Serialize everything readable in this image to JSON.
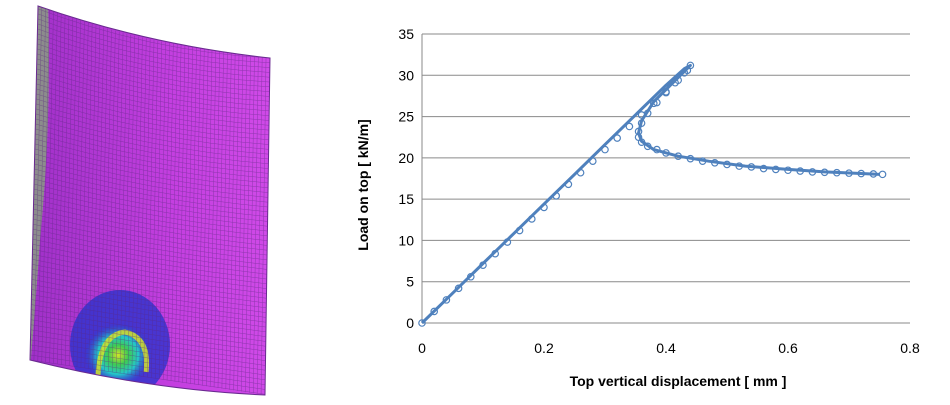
{
  "left_figure": {
    "mesh_colors": {
      "base": "#c43fe0",
      "grey_band": "#8c8c8c",
      "grid_line": "#5a2a80",
      "blue": "#2233cc",
      "cyan": "#24c8c8",
      "green": "#3ecc52",
      "yellow": "#d2e428"
    }
  },
  "chart_data": {
    "type": "scatter",
    "title": "",
    "xlabel": "Top vertical displacement [ mm ]",
    "ylabel": "Load on top [ kN/m]",
    "xlim": [
      0,
      0.8
    ],
    "ylim": [
      0,
      35
    ],
    "xticks": [
      "0",
      "0.2",
      "0.4",
      "0.6",
      "0.8"
    ],
    "yticks": [
      "0",
      "5",
      "10",
      "15",
      "20",
      "25",
      "30",
      "35"
    ],
    "grid": "horizontal",
    "legend": "none",
    "line_color": "#4f81bd",
    "marker_color": "#4f81bd",
    "series": [
      {
        "style": "line",
        "x": [
          0,
          0.05,
          0.1,
          0.15,
          0.2,
          0.25,
          0.3,
          0.35,
          0.4,
          0.43,
          0.44,
          0.41,
          0.38,
          0.36,
          0.355,
          0.36,
          0.38,
          0.42,
          0.47,
          0.53,
          0.6,
          0.66,
          0.72,
          0.75
        ],
        "y": [
          0,
          3.6,
          7.2,
          10.8,
          14.4,
          18.0,
          21.6,
          25.2,
          28.8,
          30.8,
          31.2,
          29.0,
          26.8,
          24.5,
          23.0,
          22.0,
          21.0,
          20.2,
          19.6,
          19.0,
          18.6,
          18.3,
          18.1,
          18.0
        ]
      },
      {
        "style": "markers",
        "x": [
          0,
          0.02,
          0.04,
          0.06,
          0.08,
          0.1,
          0.12,
          0.14,
          0.16,
          0.18,
          0.2,
          0.22,
          0.24,
          0.26,
          0.28,
          0.3,
          0.32,
          0.34,
          0.36,
          0.38,
          0.4,
          0.42,
          0.435,
          0.44,
          0.43,
          0.415,
          0.4,
          0.385,
          0.37,
          0.36,
          0.355,
          0.355,
          0.36,
          0.37,
          0.385,
          0.4,
          0.42,
          0.44,
          0.46,
          0.48,
          0.5,
          0.52,
          0.54,
          0.56,
          0.58,
          0.6,
          0.62,
          0.64,
          0.66,
          0.68,
          0.7,
          0.72,
          0.74,
          0.755
        ],
        "y": [
          0,
          1.4,
          2.8,
          4.2,
          5.6,
          7.0,
          8.4,
          9.8,
          11.2,
          12.6,
          14.0,
          15.4,
          16.8,
          18.2,
          19.6,
          21.0,
          22.4,
          23.8,
          25.2,
          26.6,
          28.0,
          29.4,
          30.6,
          31.2,
          30.3,
          29.1,
          27.9,
          26.7,
          25.4,
          24.2,
          23.2,
          22.5,
          21.9,
          21.4,
          21.0,
          20.6,
          20.2,
          19.9,
          19.6,
          19.4,
          19.2,
          19.0,
          18.9,
          18.7,
          18.6,
          18.5,
          18.4,
          18.3,
          18.25,
          18.2,
          18.15,
          18.1,
          18.05,
          18.0
        ]
      }
    ]
  }
}
